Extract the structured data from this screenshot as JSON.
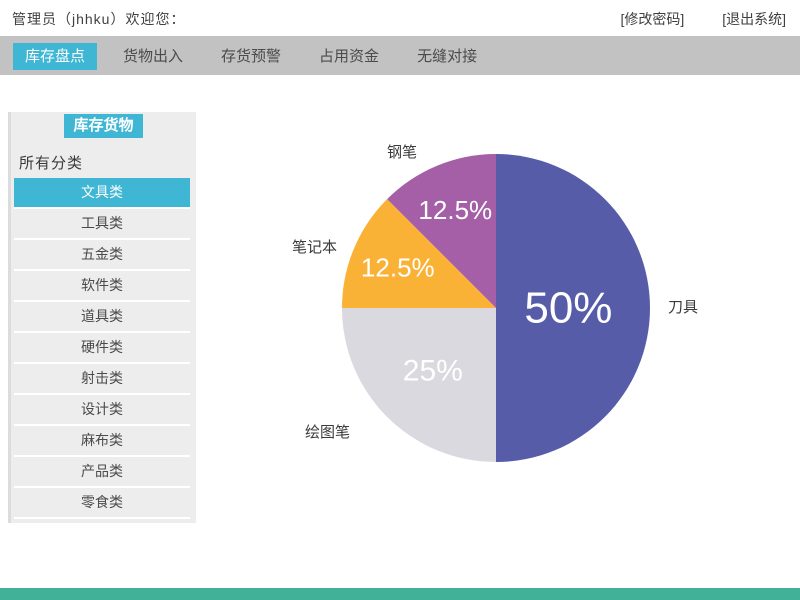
{
  "header": {
    "welcome": "管理员（jhhku）欢迎您：",
    "change_password": "[修改密码]",
    "logout": "[退出系统]"
  },
  "nav": {
    "tabs": [
      {
        "label": "库存盘点",
        "active": true
      },
      {
        "label": "货物出入",
        "active": false
      },
      {
        "label": "存货预警",
        "active": false
      },
      {
        "label": "占用资金",
        "active": false
      },
      {
        "label": "无缝对接",
        "active": false
      }
    ]
  },
  "sidebar": {
    "title": "库存货物",
    "filter_label": "所有分类",
    "items": [
      {
        "label": "文具类",
        "selected": true
      },
      {
        "label": "工具类",
        "selected": false
      },
      {
        "label": "五金类",
        "selected": false
      },
      {
        "label": "软件类",
        "selected": false
      },
      {
        "label": "道具类",
        "selected": false
      },
      {
        "label": "硬件类",
        "selected": false
      },
      {
        "label": "射击类",
        "selected": false
      },
      {
        "label": "设计类",
        "selected": false
      },
      {
        "label": "麻布类",
        "selected": false
      },
      {
        "label": "产品类",
        "selected": false
      },
      {
        "label": "零食类",
        "selected": false
      }
    ]
  },
  "chart_data": {
    "type": "pie",
    "title": "",
    "direction": "clockwise",
    "start_angle_deg": 0,
    "legend_position": "none",
    "series": [
      {
        "name": "刀具",
        "value": 50,
        "display": "50%",
        "color": "#575ca8"
      },
      {
        "name": "绘图笔",
        "value": 25,
        "display": "25%",
        "color": "#d9d9df"
      },
      {
        "name": "笔记本",
        "value": 12.5,
        "display": "12.5%",
        "color": "#f9b235"
      },
      {
        "name": "钢笔",
        "value": 12.5,
        "display": "12.5%",
        "color": "#a55fa6"
      }
    ]
  },
  "colors": {
    "accent": "#3eb6d4",
    "navbar": "#c2c2c2",
    "footer_bar": "#41b298"
  }
}
